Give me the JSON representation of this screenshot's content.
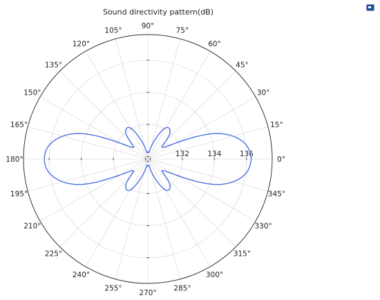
{
  "chart_data": {
    "type": "polar-line",
    "title": "Sound directivity pattern(dB)",
    "angle_unit": "deg",
    "angle_ticks": [
      0,
      15,
      30,
      45,
      60,
      75,
      90,
      105,
      120,
      135,
      150,
      165,
      180,
      195,
      210,
      225,
      240,
      255,
      270,
      285,
      300,
      315,
      330,
      345
    ],
    "angle_tick_labels": [
      "0°",
      "15°",
      "30°",
      "45°",
      "60°",
      "75°",
      "90°",
      "105°",
      "120°",
      "135°",
      "150°",
      "165°",
      "180°",
      "195°",
      "210°",
      "225°",
      "240°",
      "255°",
      "270°",
      "285°",
      "300°",
      "315°",
      "330°",
      "345°"
    ],
    "radial_range": [
      129.85,
      137.6
    ],
    "radial_ticks": [
      130,
      132,
      134,
      136
    ],
    "radial_tick_labels": [
      "",
      "132",
      "134",
      "136"
    ],
    "grid": true,
    "series": [
      {
        "color": "#4a6fe3",
        "theta": [
          0,
          10,
          20,
          30,
          40,
          50,
          60,
          70,
          80,
          90,
          100,
          110,
          120,
          130,
          140,
          150,
          160,
          170,
          180,
          190,
          200,
          210,
          220,
          230,
          240,
          250,
          260,
          270,
          280,
          290,
          300,
          310,
          320,
          330,
          340,
          350,
          360
        ],
        "r": [
          136.3,
          135.9,
          134.5,
          131.8,
          131.0,
          132.0,
          132.1,
          131.1,
          130.3,
          130.3,
          130.3,
          131.1,
          132.1,
          132.0,
          131.0,
          131.8,
          134.5,
          135.9,
          136.3,
          135.9,
          134.5,
          131.8,
          131.0,
          132.0,
          132.1,
          131.1,
          130.3,
          130.3,
          130.3,
          131.1,
          132.1,
          132.0,
          131.0,
          131.8,
          134.5,
          135.9,
          136.3
        ]
      }
    ]
  },
  "toolbar": {
    "icon": "window-icon"
  }
}
